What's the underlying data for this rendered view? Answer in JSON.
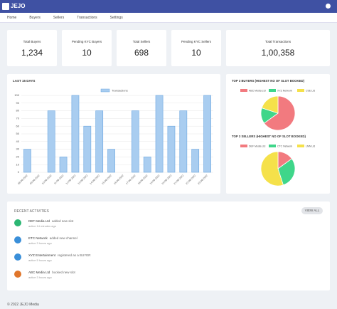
{
  "header": {
    "logo": "JEJO"
  },
  "nav": [
    "Home",
    "Buyers",
    "Sellers",
    "Transactions",
    "Settings"
  ],
  "stats": [
    {
      "label": "Total Buyers",
      "value": "1,234"
    },
    {
      "label": "Pending KYC Buyers",
      "value": "10"
    },
    {
      "label": "Total Sellers",
      "value": "698"
    },
    {
      "label": "Pending KYC Sellers",
      "value": "10"
    },
    {
      "label": "Total Transactions",
      "value": "1,00,358"
    }
  ],
  "chart_data": [
    {
      "type": "bar",
      "title": "LAST 15 DAYS",
      "categories": [
        "08-08-2022",
        "09-08-2022",
        "10-08-2022",
        "11-08-2022",
        "12-08-2022",
        "13-08-2022",
        "14-08-2022",
        "15-08-2022",
        "16-08-2022",
        "17-08-2022",
        "18-08-2022",
        "19-08-2022",
        "20-08-2022",
        "21-08-2022",
        "22-08-2022",
        "23-08-2022"
      ],
      "series": [
        {
          "name": "Transactions",
          "color": "#a9cdf0",
          "values": [
            30,
            0,
            80,
            20,
            100,
            60,
            80,
            30,
            0,
            80,
            20,
            100,
            60,
            80,
            30,
            100
          ]
        }
      ],
      "ylim": [
        0,
        100
      ],
      "yticks": [
        0,
        10,
        20,
        30,
        40,
        50,
        60,
        70,
        80,
        90,
        100
      ],
      "grid": true
    },
    {
      "type": "pie",
      "title": "TOP 3 BUYERS (HIGHEST NO OF SLOT BOOKED)",
      "categories": [
        "ABC Media Ltd",
        "XYZ Network",
        "CSE Ltd"
      ],
      "values": [
        65,
        15,
        20
      ],
      "colors": [
        "#f27a7f",
        "#3fd68a",
        "#f5e14a"
      ]
    },
    {
      "type": "pie",
      "title": "TOP 3 SELLERS (HIGHEST NO OF SLOT BOOKED)",
      "categories": [
        "DEF Media Ltd",
        "CTC Network",
        "LMN Ltd"
      ],
      "values": [
        15,
        30,
        55
      ],
      "colors": [
        "#f27a7f",
        "#3fd68a",
        "#f5e14a"
      ]
    }
  ],
  "activities": {
    "title": "RECENT ACTIVITIES",
    "button": "VIEW ALL",
    "items": [
      {
        "name": "DEF Media Ltd",
        "action": "added new slot",
        "time": "active 14 minutes ago"
      },
      {
        "name": "ETC Network",
        "action": "added new channel",
        "time": "active 3 hours ago"
      },
      {
        "name": "XYZ Entertainment",
        "action": "registered as a BUYER",
        "time": "active 5 hours ago"
      },
      {
        "name": "ABC Media Ltd",
        "action": "booked new slot",
        "time": "active 3 hours ago"
      }
    ]
  },
  "footer": "© 2022 JEJO Media"
}
